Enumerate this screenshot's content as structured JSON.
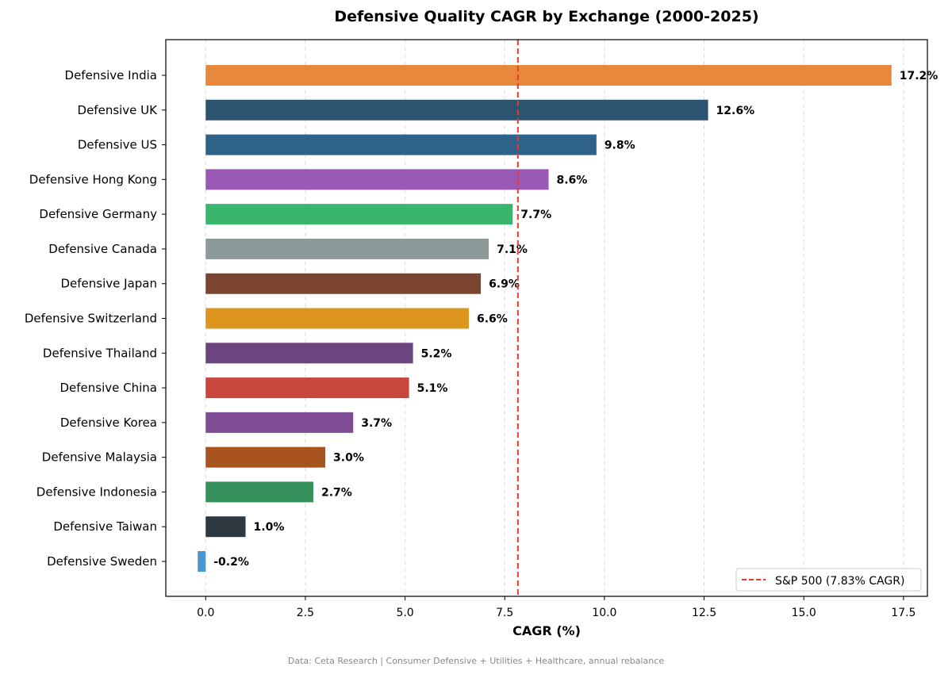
{
  "chart_data": {
    "type": "bar",
    "orientation": "horizontal",
    "title": "Defensive Quality CAGR by Exchange (2000-2025)",
    "xlabel": "CAGR (%)",
    "ylabel": "",
    "xlim": [
      -1.0,
      18.1
    ],
    "xticks": [
      "0.0",
      "2.5",
      "5.0",
      "7.5",
      "10.0",
      "12.5",
      "15.0",
      "17.5"
    ],
    "xtick_values": [
      0,
      2.5,
      5,
      7.5,
      10,
      12.5,
      15,
      17.5
    ],
    "grid": "x-dashed",
    "categories": [
      "Defensive India",
      "Defensive UK",
      "Defensive US",
      "Defensive Hong Kong",
      "Defensive Germany",
      "Defensive Canada",
      "Defensive Japan",
      "Defensive Switzerland",
      "Defensive Thailand",
      "Defensive China",
      "Defensive Korea",
      "Defensive Malaysia",
      "Defensive Indonesia",
      "Defensive Taiwan",
      "Defensive Sweden"
    ],
    "values": [
      17.2,
      12.6,
      9.8,
      8.6,
      7.7,
      7.1,
      6.9,
      6.6,
      5.2,
      5.1,
      3.7,
      3.0,
      2.7,
      1.0,
      -0.2
    ],
    "data_labels": [
      "17.2%",
      "12.6%",
      "9.8%",
      "8.6%",
      "7.7%",
      "7.1%",
      "6.9%",
      "6.6%",
      "5.2%",
      "5.1%",
      "3.7%",
      "3.0%",
      "2.7%",
      "1.0%",
      "-0.2%"
    ],
    "colors": [
      "#e8883a",
      "#2c5470",
      "#2e6288",
      "#9b59b6",
      "#3ab56e",
      "#8c9a99",
      "#7b4431",
      "#dc951f",
      "#6c4580",
      "#c8463c",
      "#7d4c92",
      "#a7541e",
      "#35905c",
      "#2d3841",
      "#4a97cf"
    ],
    "reference_line": {
      "value": 7.83,
      "label": "S&P 500 (7.83% CAGR)",
      "color": "#e8392f",
      "style": "dashed"
    },
    "legend_position": "lower-right",
    "footnote": "Data: Ceta Research | Consumer Defensive + Utilities + Healthcare, annual rebalance"
  }
}
